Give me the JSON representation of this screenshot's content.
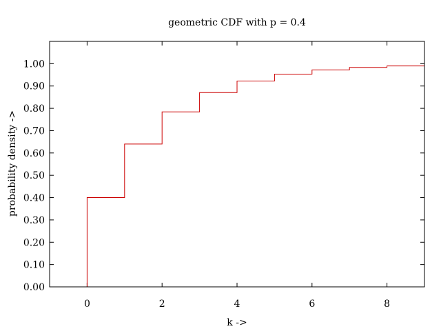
{
  "chart_data": {
    "type": "line",
    "title": "geometric CDF with p = 0.4",
    "xlabel": "k ->",
    "ylabel": "probability density ->",
    "xlim": [
      -1,
      9
    ],
    "ylim": [
      0,
      1.1
    ],
    "xticks": [
      0,
      2,
      4,
      6,
      8
    ],
    "xtick_labels": [
      "0",
      "2",
      "4",
      "6",
      "8"
    ],
    "yticks": [
      0,
      0.1,
      0.2,
      0.3,
      0.4,
      0.5,
      0.6,
      0.7,
      0.8,
      0.9,
      1.0
    ],
    "ytick_labels": [
      "0.00",
      "0.10",
      "0.20",
      "0.30",
      "0.40",
      "0.50",
      "0.60",
      "0.70",
      "0.80",
      "0.90",
      "1.00"
    ],
    "grid": false,
    "series": [
      {
        "color": "#cc0000",
        "style": "step",
        "x": [
          0,
          1,
          2,
          3,
          4,
          5,
          6,
          7,
          8,
          9
        ],
        "y": [
          0.4,
          0.64,
          0.784,
          0.8704,
          0.92224,
          0.953344,
          0.9720064,
          0.98320384,
          0.9899223,
          0.9939534
        ]
      }
    ]
  }
}
